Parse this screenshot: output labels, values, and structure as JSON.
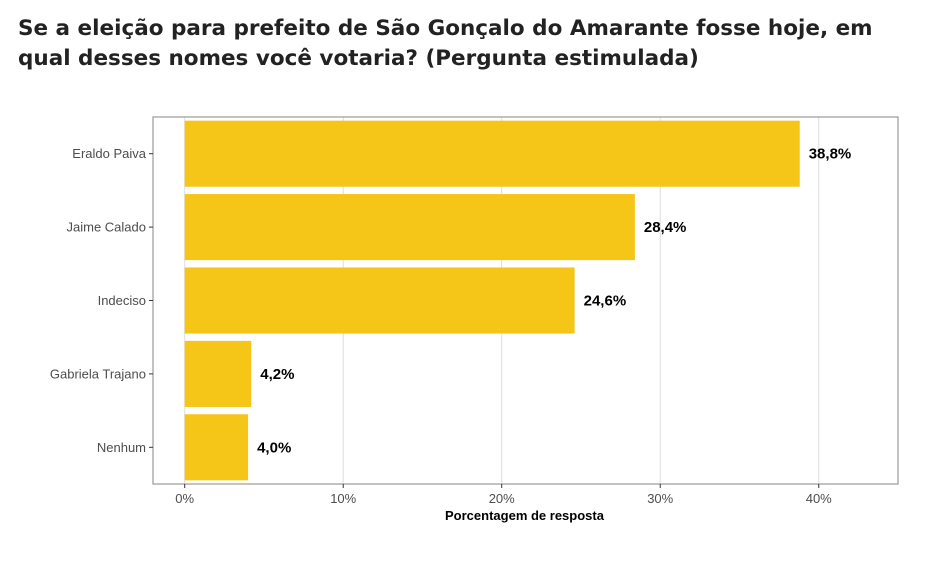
{
  "chart_data": {
    "type": "bar",
    "orientation": "horizontal",
    "title": "Se a eleição para prefeito de São Gonçalo do Amarante fosse hoje, em qual desses nomes você votaria? (Pergunta estimulada)",
    "xlabel": "Porcentagem de resposta",
    "ylabel": "",
    "categories": [
      "Eraldo Paiva",
      "Jaime Calado",
      "Indeciso",
      "Gabriela Trajano",
      "Nenhum"
    ],
    "values": [
      38.8,
      28.4,
      24.6,
      4.2,
      4.0
    ],
    "value_labels": [
      "38,8%",
      "28,4%",
      "24,6%",
      "4,2%",
      "4,0%"
    ],
    "xlim": [
      -2,
      45
    ],
    "x_ticks": [
      0,
      10,
      20,
      30,
      40
    ],
    "x_tick_labels": [
      "0%",
      "10%",
      "20%",
      "30%",
      "40%"
    ],
    "grid": true,
    "legend": "none",
    "colors": {
      "bar": "#F5C518",
      "grid": "#dddddd",
      "panel_border": "#999999"
    }
  }
}
